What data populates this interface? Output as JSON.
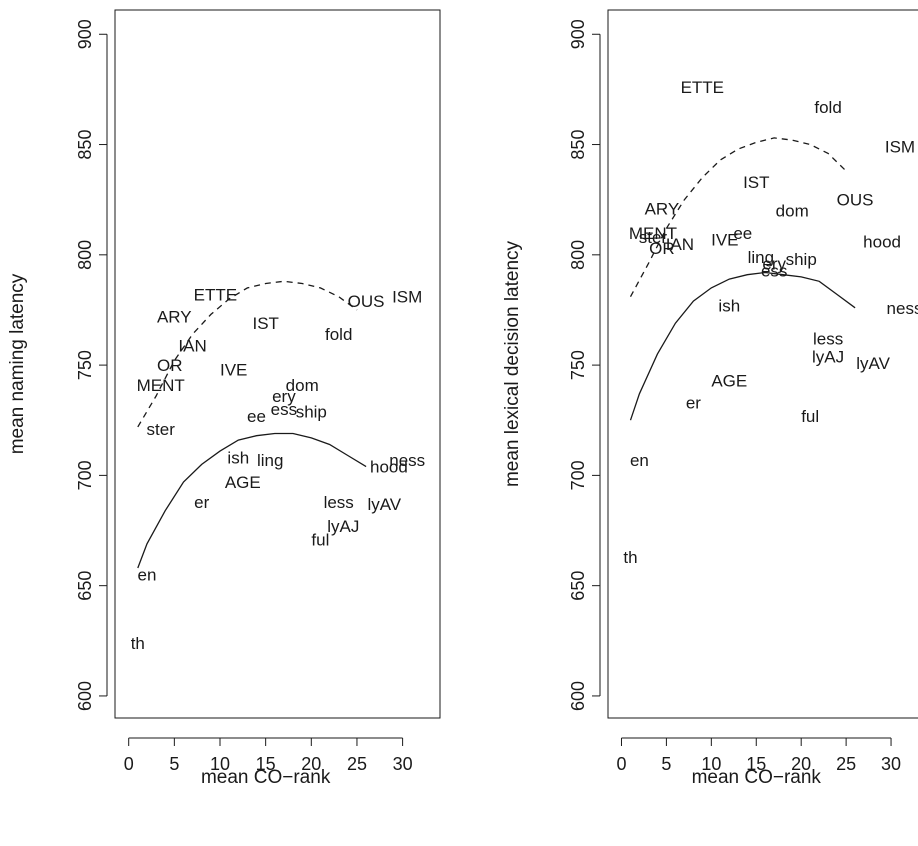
{
  "chart_data": [
    {
      "type": "scatter",
      "xlabel": "mean CO−rank",
      "ylabel": "mean naming latency",
      "xlim": [
        -1.5,
        33
      ],
      "ylim": [
        590,
        911
      ],
      "xticks": [
        0,
        5,
        10,
        15,
        20,
        25,
        30
      ],
      "yticks": [
        600,
        650,
        700,
        750,
        800,
        850,
        900
      ],
      "grid": false,
      "points": [
        {
          "label": "th",
          "x": 1,
          "y": 624
        },
        {
          "label": "en",
          "x": 2,
          "y": 655
        },
        {
          "label": "ster",
          "x": 3.5,
          "y": 721
        },
        {
          "label": "MENT",
          "x": 3.5,
          "y": 741
        },
        {
          "label": "OR",
          "x": 4.5,
          "y": 750
        },
        {
          "label": "IAN",
          "x": 7,
          "y": 759
        },
        {
          "label": "ARY",
          "x": 5,
          "y": 772
        },
        {
          "label": "ETTE",
          "x": 9.5,
          "y": 782
        },
        {
          "label": "IST",
          "x": 15,
          "y": 769
        },
        {
          "label": "IVE",
          "x": 11.5,
          "y": 748
        },
        {
          "label": "er",
          "x": 8,
          "y": 688
        },
        {
          "label": "AGE",
          "x": 12.5,
          "y": 697
        },
        {
          "label": "ish",
          "x": 12,
          "y": 708
        },
        {
          "label": "ling",
          "x": 15.5,
          "y": 707
        },
        {
          "label": "ee",
          "x": 14,
          "y": 727
        },
        {
          "label": "ery",
          "x": 17,
          "y": 736
        },
        {
          "label": "ess",
          "x": 17,
          "y": 730
        },
        {
          "label": "dom",
          "x": 19,
          "y": 741
        },
        {
          "label": "ship",
          "x": 20,
          "y": 729
        },
        {
          "label": "fold",
          "x": 23,
          "y": 764
        },
        {
          "label": "OUS",
          "x": 26,
          "y": 779
        },
        {
          "label": "ISM",
          "x": 30.5,
          "y": 781
        },
        {
          "label": "hood",
          "x": 28.5,
          "y": 704
        },
        {
          "label": "ness",
          "x": 30.5,
          "y": 707
        },
        {
          "label": "less",
          "x": 23,
          "y": 688
        },
        {
          "label": "lyAV",
          "x": 28,
          "y": 687
        },
        {
          "label": "lyAJ",
          "x": 23.5,
          "y": 677
        },
        {
          "label": "ful",
          "x": 21,
          "y": 671
        }
      ],
      "solid_curve": [
        [
          1,
          658
        ],
        [
          2,
          669
        ],
        [
          4,
          684
        ],
        [
          6,
          697
        ],
        [
          8,
          705
        ],
        [
          10,
          711
        ],
        [
          12,
          716
        ],
        [
          14,
          718
        ],
        [
          16,
          719
        ],
        [
          18,
          719
        ],
        [
          20,
          717
        ],
        [
          22,
          714
        ],
        [
          24,
          709
        ],
        [
          26,
          704
        ]
      ],
      "dashed_curve": [
        [
          1,
          722
        ],
        [
          3,
          736
        ],
        [
          5,
          752
        ],
        [
          7,
          764
        ],
        [
          9,
          773
        ],
        [
          11,
          780
        ],
        [
          13,
          785
        ],
        [
          15,
          787
        ],
        [
          17,
          788
        ],
        [
          19,
          787
        ],
        [
          21,
          785
        ],
        [
          23,
          781
        ],
        [
          25,
          775
        ]
      ]
    },
    {
      "type": "scatter",
      "xlabel": "mean CO−rank",
      "ylabel": "mean lexical decision latency",
      "xlim": [
        -1.5,
        33
      ],
      "ylim": [
        590,
        911
      ],
      "xticks": [
        0,
        5,
        10,
        15,
        20,
        25,
        30
      ],
      "yticks": [
        600,
        650,
        700,
        750,
        800,
        850,
        900
      ],
      "grid": false,
      "points": [
        {
          "label": "th",
          "x": 1,
          "y": 663
        },
        {
          "label": "en",
          "x": 2,
          "y": 707
        },
        {
          "label": "er",
          "x": 8,
          "y": 733
        },
        {
          "label": "AGE",
          "x": 12,
          "y": 743
        },
        {
          "label": "ish",
          "x": 12,
          "y": 777
        },
        {
          "label": "ful",
          "x": 21,
          "y": 727
        },
        {
          "label": "less",
          "x": 23,
          "y": 762
        },
        {
          "label": "lyAJ",
          "x": 23,
          "y": 754
        },
        {
          "label": "lyAV",
          "x": 28,
          "y": 751
        },
        {
          "label": "ness",
          "x": 31.5,
          "y": 776
        },
        {
          "label": "hood",
          "x": 29,
          "y": 806
        },
        {
          "label": "OUS",
          "x": 26,
          "y": 825
        },
        {
          "label": "ISM",
          "x": 31,
          "y": 849
        },
        {
          "label": "fold",
          "x": 23,
          "y": 867
        },
        {
          "label": "ETTE",
          "x": 9,
          "y": 876
        },
        {
          "label": "IST",
          "x": 15,
          "y": 833
        },
        {
          "label": "dom",
          "x": 19,
          "y": 820
        },
        {
          "label": "ee",
          "x": 13.5,
          "y": 810
        },
        {
          "label": "IVE",
          "x": 11.5,
          "y": 807
        },
        {
          "label": "ling",
          "x": 15.5,
          "y": 799
        },
        {
          "label": "ery",
          "x": 17,
          "y": 796
        },
        {
          "label": "ess",
          "x": 17,
          "y": 793
        },
        {
          "label": "ship",
          "x": 20,
          "y": 798
        },
        {
          "label": "ARY",
          "x": 4.5,
          "y": 821
        },
        {
          "label": "MENT",
          "x": 3.5,
          "y": 810
        },
        {
          "label": "ster",
          "x": 3.5,
          "y": 808
        },
        {
          "label": "IAN",
          "x": 6.5,
          "y": 805
        },
        {
          "label": "OR",
          "x": 4.5,
          "y": 803
        }
      ],
      "solid_curve": [
        [
          1,
          725
        ],
        [
          2,
          737
        ],
        [
          4,
          755
        ],
        [
          6,
          769
        ],
        [
          8,
          779
        ],
        [
          10,
          785
        ],
        [
          12,
          789
        ],
        [
          14,
          791
        ],
        [
          16,
          792
        ],
        [
          18,
          791
        ],
        [
          20,
          790
        ],
        [
          22,
          788
        ],
        [
          24,
          782
        ],
        [
          26,
          776
        ]
      ],
      "dashed_curve": [
        [
          1,
          781
        ],
        [
          3,
          796
        ],
        [
          5,
          812
        ],
        [
          7,
          825
        ],
        [
          9,
          835
        ],
        [
          11,
          843
        ],
        [
          13,
          848
        ],
        [
          15,
          851
        ],
        [
          17,
          853
        ],
        [
          19,
          852
        ],
        [
          21,
          850
        ],
        [
          23,
          846
        ],
        [
          25,
          838
        ]
      ]
    }
  ]
}
